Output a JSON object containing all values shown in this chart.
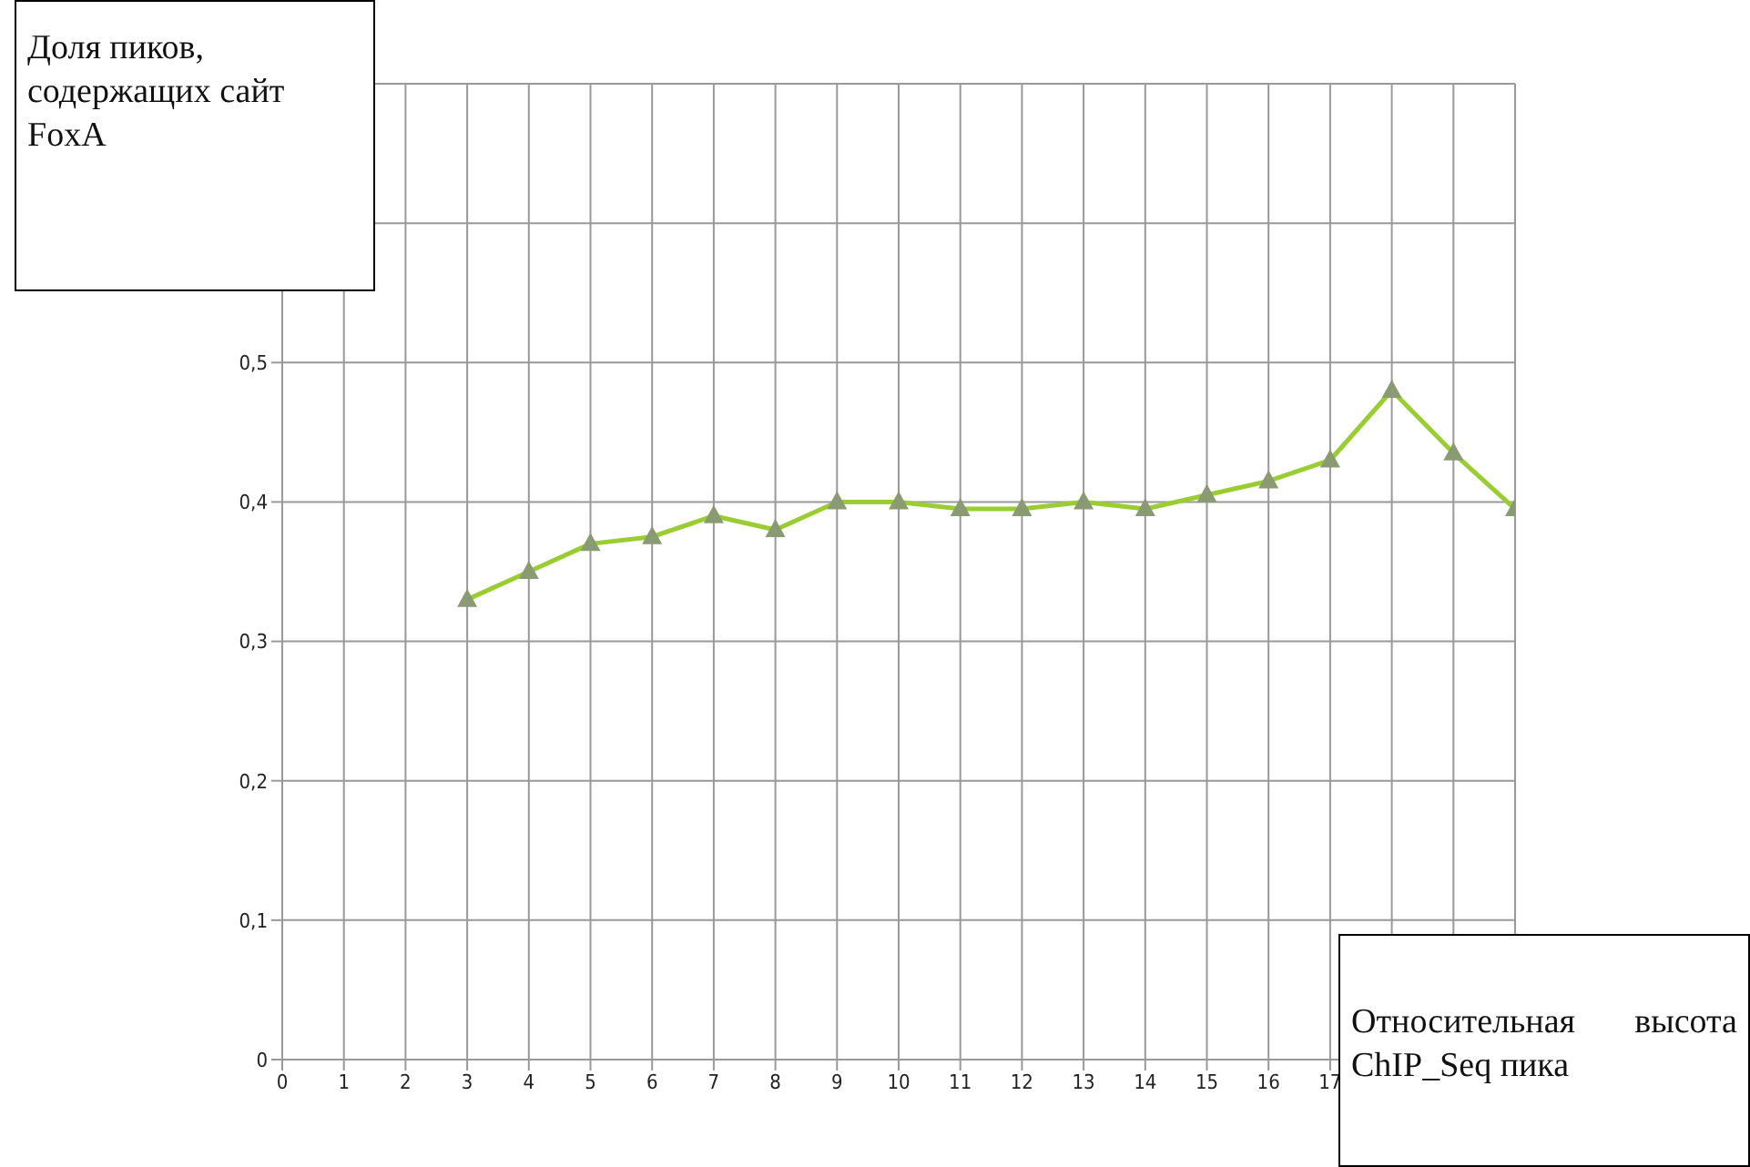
{
  "chart_data": {
    "type": "line",
    "ylabel": "Доля пиков, содержащих сайт FoxA",
    "xlabel": "Относительная высота ChIP_Seq пика",
    "x": [
      3,
      4,
      5,
      6,
      7,
      8,
      9,
      10,
      11,
      12,
      13,
      14,
      15,
      16,
      17,
      18,
      19,
      20
    ],
    "series": [
      {
        "color": "#9acd32",
        "values": [
          0.33,
          0.35,
          0.37,
          0.375,
          0.39,
          0.38,
          0.4,
          0.4,
          0.395,
          0.395,
          0.4,
          0.395,
          0.405,
          0.415,
          0.43,
          0.48,
          0.435,
          0.395
        ]
      }
    ],
    "xlim": [
      0,
      20
    ],
    "xticks": [
      0,
      1,
      2,
      3,
      4,
      5,
      6,
      7,
      8,
      9,
      10,
      11,
      12,
      13,
      14,
      15,
      16,
      17,
      {
        "value": 18,
        "label": null
      },
      {
        "value": 19,
        "label": null
      },
      {
        "value": 20,
        "label": null
      }
    ],
    "ylim": [
      0,
      0.7
    ],
    "yticks": [
      0,
      {
        "value": 0.1,
        "label": "0,1"
      },
      {
        "value": 0.2,
        "label": "0,2"
      },
      {
        "value": 0.3,
        "label": "0,3"
      },
      {
        "value": 0.4,
        "label": "0,4"
      },
      {
        "value": 0.5,
        "label": "0,5"
      },
      {
        "value": 0.6,
        "label": null
      },
      {
        "value": 0.7,
        "label": null
      }
    ],
    "grid": true,
    "marker": "triangle",
    "line_style": "solid"
  }
}
